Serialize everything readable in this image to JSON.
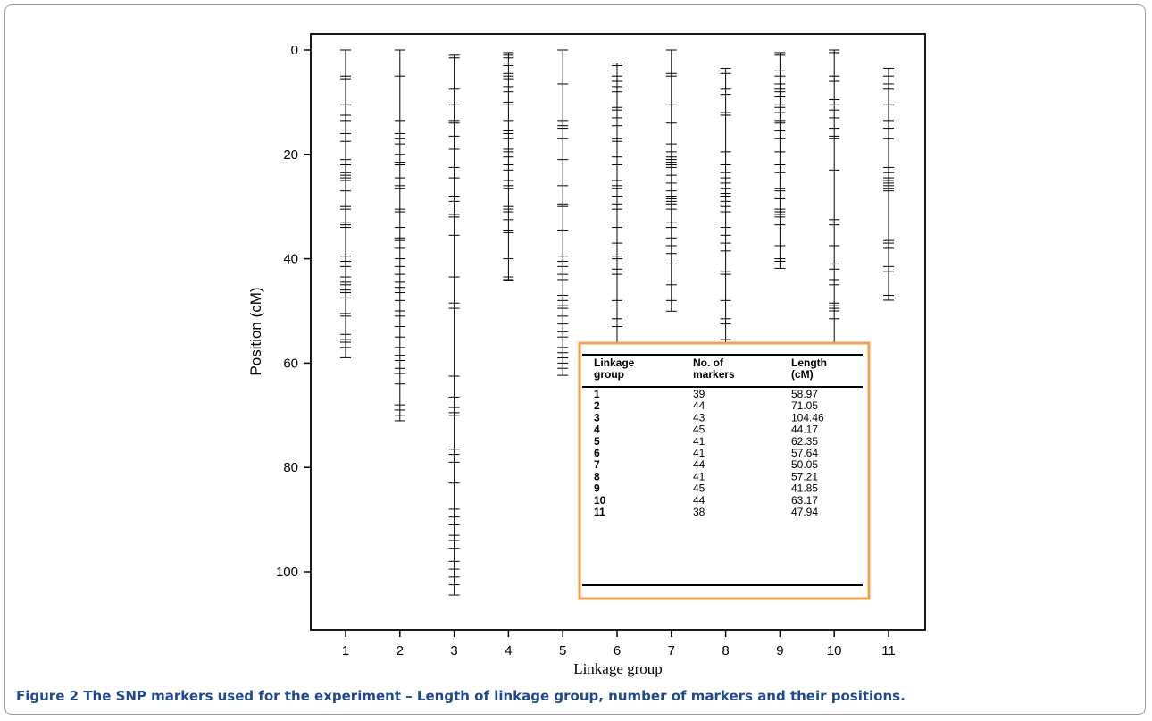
{
  "figure": {
    "caption_label": "Figure 2",
    "caption_text": "The SNP markers used for the experiment – Length of linkage group, number of markers and their positions."
  },
  "chart_data": {
    "type": "scatter",
    "mark": "tick",
    "xlabel": "Linkage group",
    "ylabel": "Position (cM)",
    "categories": [
      "1",
      "2",
      "3",
      "4",
      "5",
      "6",
      "7",
      "8",
      "9",
      "10",
      "11"
    ],
    "ylim": [
      110,
      -3
    ],
    "y_ticks": [
      0,
      20,
      40,
      60,
      80,
      100
    ],
    "y_inverted": true,
    "groups": [
      {
        "group": "1",
        "positions": [
          0,
          5,
          5.5,
          10.5,
          12.5,
          13.5,
          16,
          17.5,
          21,
          22,
          23.5,
          24,
          24.5,
          25,
          27,
          30,
          30.5,
          33,
          33.5,
          34,
          39.5,
          40.5,
          41.5,
          43.5,
          44.5,
          45,
          46,
          46.5,
          47.5,
          50.5,
          51,
          54.5,
          55.5,
          56,
          57,
          58.97
        ]
      },
      {
        "group": "2",
        "positions": [
          0,
          5,
          13.5,
          16,
          17,
          18,
          20,
          21.5,
          22,
          24.5,
          26,
          26.5,
          30.5,
          31,
          34,
          36,
          36.5,
          38,
          40,
          41.5,
          43,
          44.5,
          45.5,
          46.5,
          48,
          50,
          51,
          53,
          55,
          57,
          58.5,
          59.5,
          61,
          62,
          64,
          68,
          69,
          70,
          71.05
        ]
      },
      {
        "group": "3",
        "positions": [
          1,
          1.5,
          7.5,
          10.5,
          13.5,
          14,
          16.5,
          19,
          22.5,
          24.5,
          28,
          29,
          31.5,
          32,
          35.5,
          43.5,
          48.5,
          49.5,
          62.5,
          66.5,
          68.5,
          69.5,
          70,
          76.5,
          77.5,
          79,
          83,
          88,
          89.5,
          91,
          93,
          94,
          95.5,
          98,
          99.5,
          101,
          102.5,
          104.46
        ]
      },
      {
        "group": "4",
        "positions": [
          0.5,
          1,
          1.5,
          2.5,
          3,
          4.5,
          5,
          5.5,
          7,
          8,
          10,
          10.5,
          13.5,
          15.5,
          16,
          17,
          19,
          19.5,
          20.5,
          22,
          23,
          25,
          26,
          26.5,
          30,
          30.5,
          31,
          32.5,
          34.5,
          35,
          40,
          43.5,
          44,
          44.17
        ]
      },
      {
        "group": "5",
        "positions": [
          0,
          6.5,
          13.5,
          14.5,
          15,
          17,
          21,
          26,
          29.5,
          30,
          34.5,
          39.5,
          40.5,
          41.5,
          43,
          44,
          47,
          48,
          49,
          49.5,
          51,
          52.5,
          54,
          55,
          57,
          58,
          59,
          60,
          61,
          62.35
        ]
      },
      {
        "group": "6",
        "positions": [
          2.5,
          3,
          5,
          6,
          7,
          8,
          11,
          11.5,
          13,
          14.5,
          17,
          17.5,
          20.5,
          22,
          25,
          26,
          26.5,
          28,
          29.5,
          30.5,
          34,
          37,
          39.5,
          40,
          42,
          43,
          48,
          51.5,
          53,
          56.5,
          57.64
        ]
      },
      {
        "group": "7",
        "positions": [
          0,
          4.5,
          5,
          10.5,
          14,
          18,
          19.5,
          20.5,
          21,
          21.5,
          22,
          22.5,
          24,
          25.5,
          27,
          28,
          28.5,
          29,
          29.5,
          30.5,
          33,
          34,
          36,
          37.5,
          39,
          41,
          45,
          48,
          50.05
        ]
      },
      {
        "group": "8",
        "positions": [
          3.5,
          4.5,
          7.5,
          8.5,
          12,
          12.5,
          19.5,
          22,
          23.5,
          24.5,
          25.5,
          26.5,
          27.5,
          28,
          29,
          30,
          31,
          34,
          35.5,
          37,
          38.5,
          42.5,
          43,
          48,
          51.5,
          52.5,
          55.5,
          57.21
        ]
      },
      {
        "group": "9",
        "positions": [
          0.5,
          1,
          4,
          5,
          6.5,
          7.5,
          8,
          9,
          10.5,
          11,
          12,
          13.5,
          14,
          15.5,
          17,
          19.5,
          22,
          23.5,
          26.5,
          27,
          28.5,
          30.5,
          31,
          31.5,
          32,
          33.5,
          37.5,
          40,
          40.5,
          41.85
        ]
      },
      {
        "group": "10",
        "positions": [
          0,
          0.5,
          5,
          6,
          9.5,
          10.5,
          11.5,
          13,
          15,
          16.5,
          17,
          23,
          32.5,
          33.5,
          37.5,
          41,
          42,
          44,
          45,
          48.5,
          49,
          49.5,
          50,
          51.5,
          56.5,
          57.5,
          63.17
        ]
      },
      {
        "group": "11",
        "positions": [
          3.5,
          5,
          6.5,
          7.5,
          10.5,
          13.5,
          15,
          17,
          22.5,
          23.5,
          24.5,
          25,
          25.5,
          26,
          26.5,
          27,
          36.5,
          37,
          38,
          41.5,
          42.5,
          47,
          47.94
        ]
      }
    ],
    "table": {
      "headers": [
        [
          "Linkage",
          "group"
        ],
        [
          "No. of",
          "markers"
        ],
        [
          "Length",
          "(cM)"
        ]
      ],
      "rows": [
        [
          "1",
          "39",
          "58.97"
        ],
        [
          "2",
          "44",
          "71.05"
        ],
        [
          "3",
          "43",
          "104.46"
        ],
        [
          "4",
          "45",
          "44.17"
        ],
        [
          "5",
          "41",
          "62.35"
        ],
        [
          "6",
          "41",
          "57.64"
        ],
        [
          "7",
          "44",
          "50.05"
        ],
        [
          "8",
          "41",
          "57.21"
        ],
        [
          "9",
          "45",
          "41.85"
        ],
        [
          "10",
          "44",
          "63.17"
        ],
        [
          "11",
          "38",
          "47.94"
        ]
      ],
      "border_color": "#f0a04b"
    }
  }
}
